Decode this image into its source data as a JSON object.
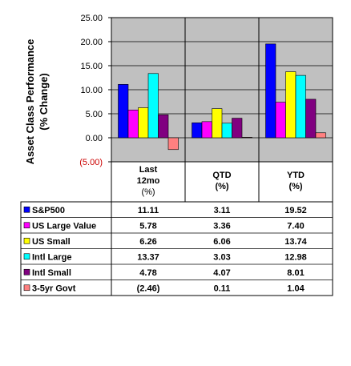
{
  "chart_data": {
    "type": "bar",
    "title": "",
    "ylabel": "Asset Class Performance (% Change)",
    "ylabel_lines": [
      "Asset Class Performance",
      "(% Change)"
    ],
    "xlabel": "",
    "ylim": [
      -5,
      25
    ],
    "yticks": [
      25,
      20,
      15,
      10,
      5,
      0,
      -5
    ],
    "ytick_labels": [
      "25.00",
      "20.00",
      "15.00",
      "10.00",
      "5.00",
      "0.00",
      "(5.00)"
    ],
    "grid": true,
    "plot_background": "#c0c0c0",
    "legend_placement": "table-left",
    "categories": [
      {
        "lines": [
          "Last",
          "12mo",
          "(%)"
        ]
      },
      {
        "lines": [
          "QTD",
          "(%)"
        ]
      },
      {
        "lines": [
          "YTD",
          "(%)"
        ]
      }
    ],
    "series": [
      {
        "name": "S&P500",
        "color": "#0000ff",
        "values": [
          11.11,
          3.11,
          19.52
        ],
        "labels": [
          "11.11",
          "3.11",
          "19.52"
        ]
      },
      {
        "name": "US Large Value",
        "color": "#ff00ff",
        "values": [
          5.78,
          3.36,
          7.4
        ],
        "labels": [
          "5.78",
          "3.36",
          "7.40"
        ]
      },
      {
        "name": "US Small",
        "color": "#ffff00",
        "values": [
          6.26,
          6.06,
          13.74
        ],
        "labels": [
          "6.26",
          "6.06",
          "13.74"
        ]
      },
      {
        "name": "Intl Large",
        "color": "#00ffff",
        "values": [
          13.37,
          3.03,
          12.98
        ],
        "labels": [
          "13.37",
          "3.03",
          "12.98"
        ]
      },
      {
        "name": "Intl Small",
        "color": "#800080",
        "values": [
          4.78,
          4.07,
          8.01
        ],
        "labels": [
          "4.78",
          "4.07",
          "8.01"
        ]
      },
      {
        "name": "3-5yr Govt",
        "color": "#ff8080",
        "values": [
          -2.46,
          0.11,
          1.04
        ],
        "labels": [
          "(2.46)",
          "0.11",
          "1.04"
        ]
      }
    ],
    "negative_label_color": "#cc0000"
  }
}
